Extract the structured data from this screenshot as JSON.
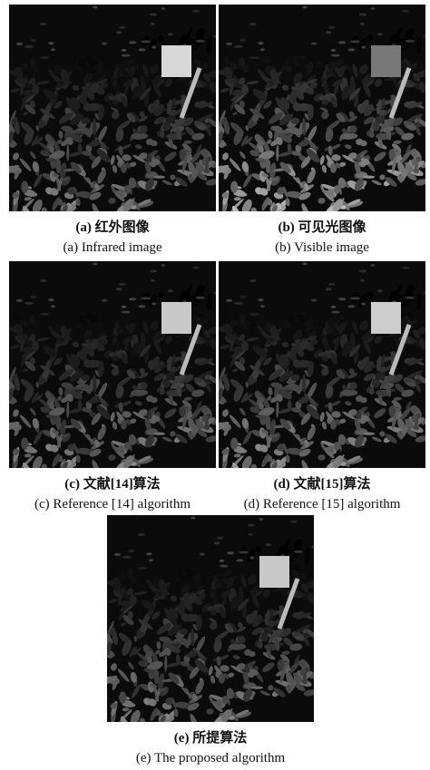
{
  "figure": {
    "panels": [
      {
        "caption_cn": "(a) 红外图像",
        "caption_en": "(a) Infrared image"
      },
      {
        "caption_cn": "(b) 可见光图像",
        "caption_en": "(b) Visible image"
      },
      {
        "caption_cn": "(c) 文献[14]算法",
        "caption_en": "(c) Reference [14] algorithm"
      },
      {
        "caption_cn": "(d) 文献[15]算法",
        "caption_en": "(d) Reference [15] algorithm"
      },
      {
        "caption_cn": "(e) 所提算法",
        "caption_en": "(e) The proposed algorithm"
      }
    ]
  }
}
